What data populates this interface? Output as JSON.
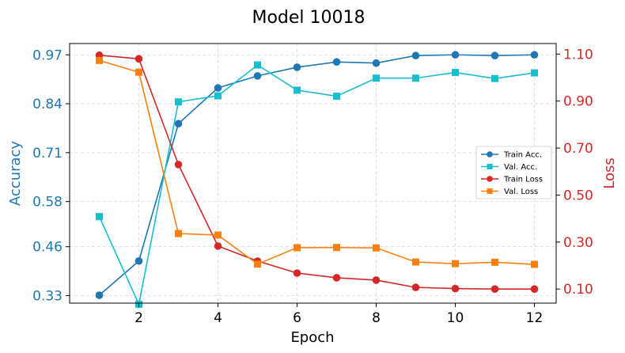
{
  "chart_data": {
    "type": "line",
    "title": "Model 10018",
    "xlabel": "Epoch",
    "ylabel_left": "Accuracy",
    "ylabel_right": "Loss",
    "x": [
      1,
      2,
      3,
      4,
      5,
      6,
      7,
      8,
      9,
      10,
      11,
      12
    ],
    "x_ticks": [
      2,
      4,
      6,
      8,
      10,
      12
    ],
    "xlim": [
      0.25,
      12.55
    ],
    "left_axis": {
      "ylim": [
        0.31,
        1.0
      ],
      "ticks": [
        0.33,
        0.46,
        0.58,
        0.71,
        0.84,
        0.97
      ],
      "tick_labels": [
        "0.33",
        "0.46",
        "0.58",
        "0.71",
        "0.84",
        "0.97"
      ],
      "color": "#1f77b4"
    },
    "right_axis": {
      "ylim": [
        0.04,
        1.145
      ],
      "ticks": [
        0.1,
        0.3,
        0.5,
        0.7,
        0.9,
        1.1
      ],
      "tick_labels": [
        "0.10",
        "0.30",
        "0.50",
        "0.70",
        "0.90",
        "1.10"
      ],
      "color": "#d62728"
    },
    "grid": true,
    "legend_position": "center-right",
    "series": [
      {
        "name": "Train Acc.",
        "axis": "left",
        "color": "#1f77b4",
        "marker": "circle",
        "values": [
          0.331,
          0.422,
          0.787,
          0.882,
          0.914,
          0.937,
          0.951,
          0.948,
          0.968,
          0.97,
          0.968,
          0.97
        ]
      },
      {
        "name": "Val. Acc.",
        "axis": "left",
        "color": "#17becf",
        "marker": "square",
        "values": [
          0.54,
          0.307,
          0.845,
          0.861,
          0.943,
          0.876,
          0.86,
          0.908,
          0.908,
          0.923,
          0.907,
          0.922
        ]
      },
      {
        "name": "Train Loss",
        "axis": "right",
        "color": "#d62728",
        "marker": "circle",
        "values": [
          1.095,
          1.08,
          0.63,
          0.283,
          0.219,
          0.168,
          0.148,
          0.138,
          0.107,
          0.102,
          0.1,
          0.1
        ]
      },
      {
        "name": "Val. Loss",
        "axis": "right",
        "color": "#ff7f0e",
        "marker": "square",
        "values": [
          1.073,
          1.023,
          0.336,
          0.33,
          0.206,
          0.276,
          0.277,
          0.275,
          0.215,
          0.208,
          0.214,
          0.205
        ]
      }
    ]
  }
}
